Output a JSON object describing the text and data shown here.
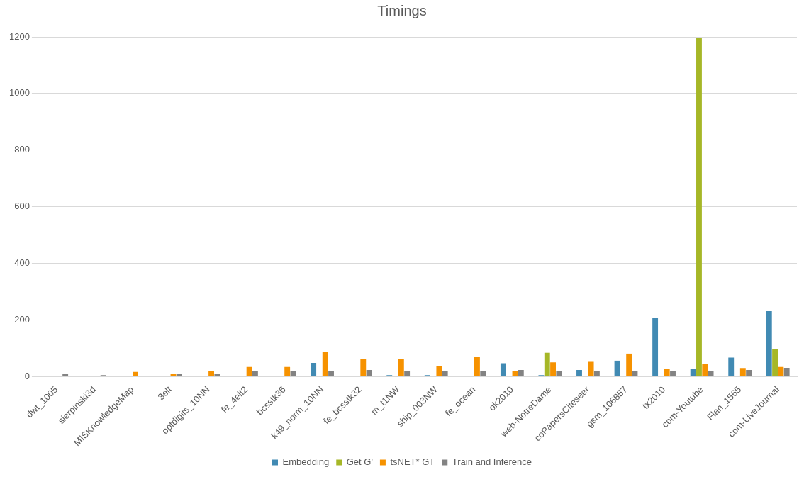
{
  "chart_data": {
    "type": "bar",
    "title": "Timings",
    "categories": [
      "dwt_1005",
      "sierpinski3d",
      "MISKnowledgeMap",
      "3elt",
      "optdigits_10NN",
      "fe_4elt2",
      "bcsstk36",
      "k49_norm_10NN",
      "fe_bcsstk32",
      "m_t1NW",
      "ship_003NW",
      "fe_ocean",
      "ok2010",
      "web-NotreDame",
      "coPapersCiteseer",
      "gsm_106857",
      "tx2010",
      "com-Youtube",
      "Flan_1565",
      "com-LiveJournal"
    ],
    "series": [
      {
        "name": "Embedding",
        "color": "#418ab3",
        "values": [
          null,
          null,
          null,
          null,
          null,
          null,
          null,
          48,
          null,
          5,
          5,
          null,
          47,
          5,
          23,
          56,
          207,
          28,
          67,
          231
        ]
      },
      {
        "name": "Get G'",
        "color": "#a6b727",
        "values": [
          null,
          null,
          null,
          null,
          null,
          null,
          null,
          null,
          null,
          null,
          null,
          null,
          null,
          84,
          null,
          null,
          null,
          1195,
          null,
          97
        ]
      },
      {
        "name": "tsNET* GT",
        "color": "#f69200",
        "values": [
          null,
          3,
          16,
          8,
          20,
          34,
          34,
          87,
          61,
          61,
          38,
          69,
          20,
          50,
          52,
          81,
          26,
          45,
          30,
          34
        ]
      },
      {
        "name": "Train and Inference",
        "color": "#838383",
        "values": [
          8,
          5,
          3,
          10,
          10,
          20,
          18,
          20,
          23,
          18,
          18,
          18,
          23,
          20,
          18,
          20,
          20,
          20,
          23,
          31
        ]
      }
    ],
    "ylim": [
      0,
      1200
    ],
    "yticks": [
      0,
      200,
      400,
      600,
      800,
      1000,
      1200
    ],
    "grid": "y",
    "legend": "bottom"
  }
}
